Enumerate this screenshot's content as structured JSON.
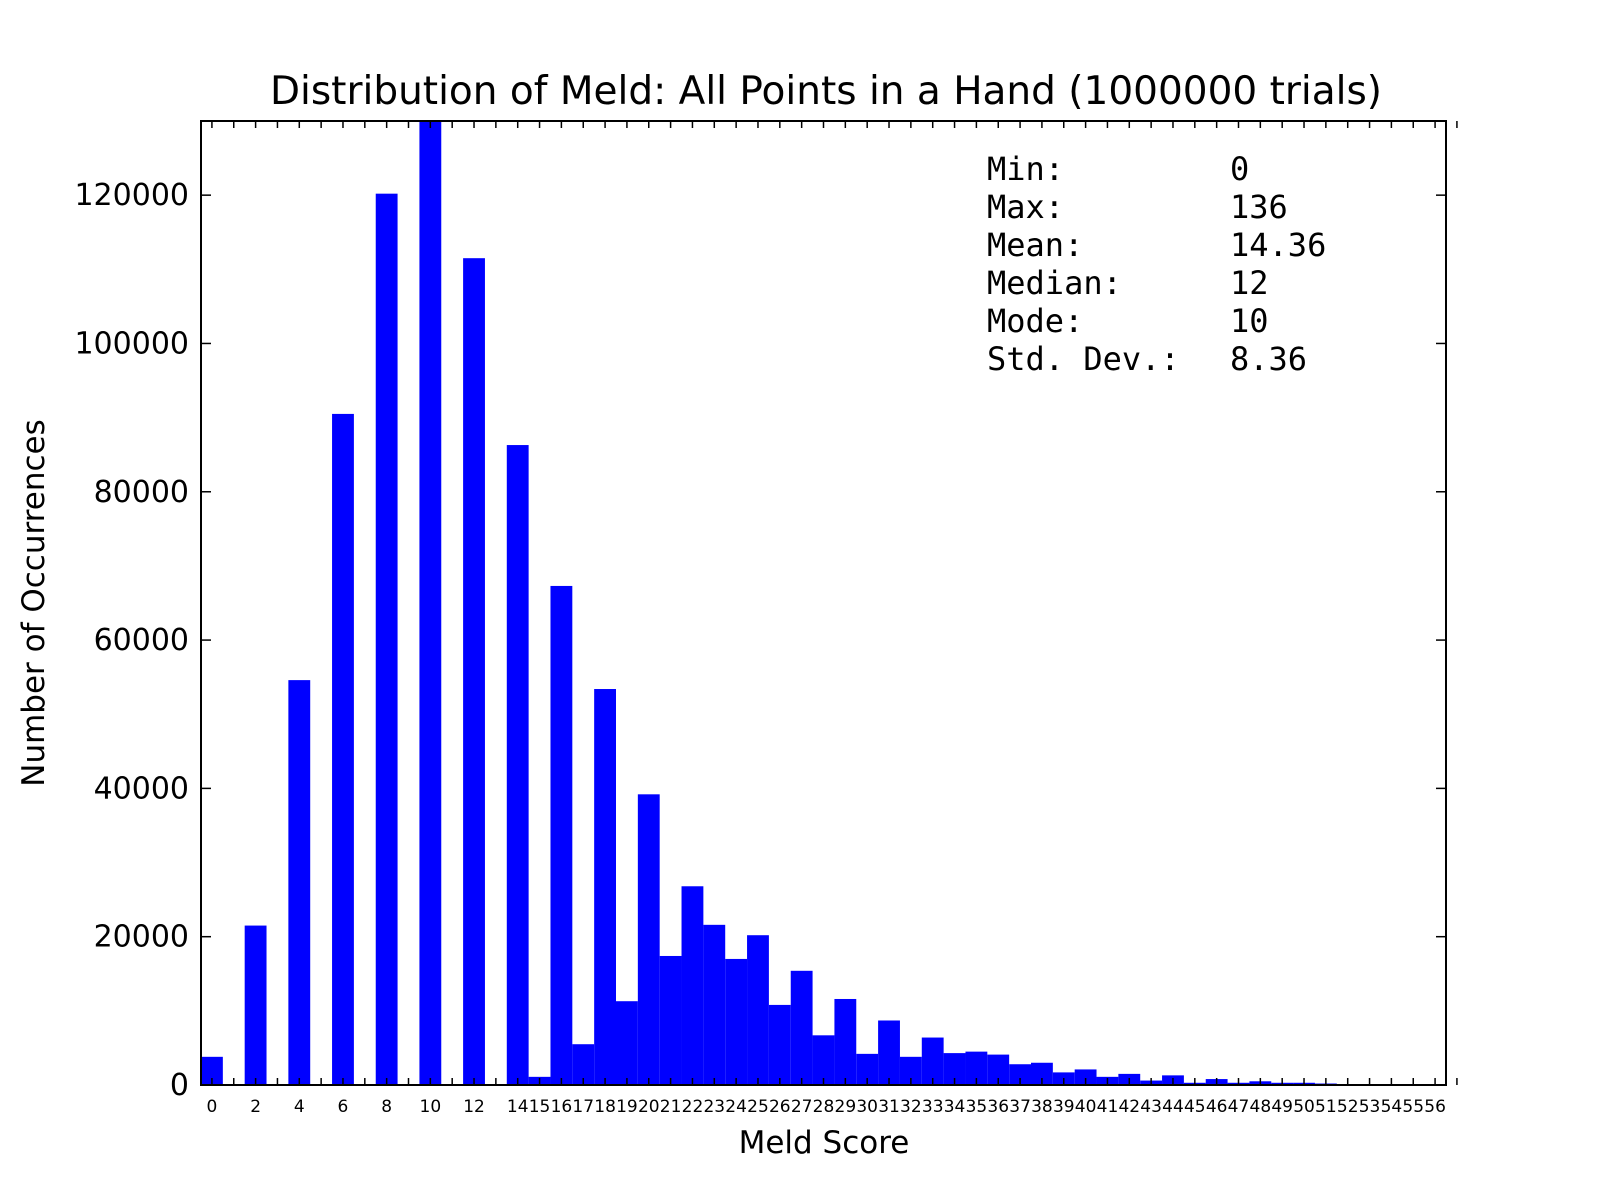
{
  "chart_data": {
    "type": "bar",
    "title": "Distribution of Meld: All Points in a Hand (1000000 trials)",
    "xlabel": "Meld Score",
    "ylabel": "Number of Occurrences",
    "ylim": [
      0,
      130000
    ],
    "yticks": [
      0,
      20000,
      40000,
      60000,
      80000,
      100000,
      120000
    ],
    "bar_color": "#0000ff",
    "grid": false,
    "x": [
      0,
      2,
      4,
      6,
      8,
      10,
      12,
      14,
      15,
      16,
      17,
      18,
      19,
      20,
      21,
      22,
      23,
      24,
      25,
      26,
      27,
      28,
      29,
      30,
      31,
      32,
      33,
      34,
      35,
      36,
      37,
      38,
      39,
      40,
      41,
      42,
      43,
      44,
      45,
      46,
      47,
      48,
      49,
      50,
      51,
      52,
      53,
      54,
      55,
      56
    ],
    "xtick_labels": [
      "0",
      "2",
      "4",
      "6",
      "8",
      "10",
      "12",
      "14",
      "15",
      "16",
      "17",
      "18",
      "19",
      "20",
      "21",
      "22",
      "23",
      "24",
      "25",
      "26",
      "27",
      "28",
      "29",
      "30",
      "31",
      "32",
      "33",
      "34",
      "35",
      "36",
      "37",
      "38",
      "39",
      "40",
      "41",
      "42",
      "43",
      "44",
      "45",
      "46",
      "47",
      "48",
      "49",
      "50",
      "51",
      "52",
      "53",
      "54",
      "55",
      "56"
    ],
    "values": [
      3800,
      21500,
      54600,
      90500,
      120200,
      130000,
      111500,
      86300,
      1100,
      67300,
      5500,
      53400,
      11300,
      39200,
      17400,
      26800,
      21600,
      17000,
      20200,
      10800,
      15400,
      6700,
      11600,
      4200,
      8700,
      3800,
      6400,
      4300,
      4500,
      4100,
      2800,
      3000,
      1700,
      2100,
      1100,
      1500,
      600,
      1300,
      300,
      800,
      300,
      500,
      300,
      300,
      200,
      100,
      0,
      0,
      0,
      0
    ]
  },
  "stats": [
    {
      "label": "Min:",
      "value": "0"
    },
    {
      "label": "Max:",
      "value": "136"
    },
    {
      "label": "Mean:",
      "value": "14.36"
    },
    {
      "label": "Median:",
      "value": "12"
    },
    {
      "label": "Mode:",
      "value": "10"
    },
    {
      "label": "Std. Dev.:",
      "value": "8.36"
    }
  ]
}
